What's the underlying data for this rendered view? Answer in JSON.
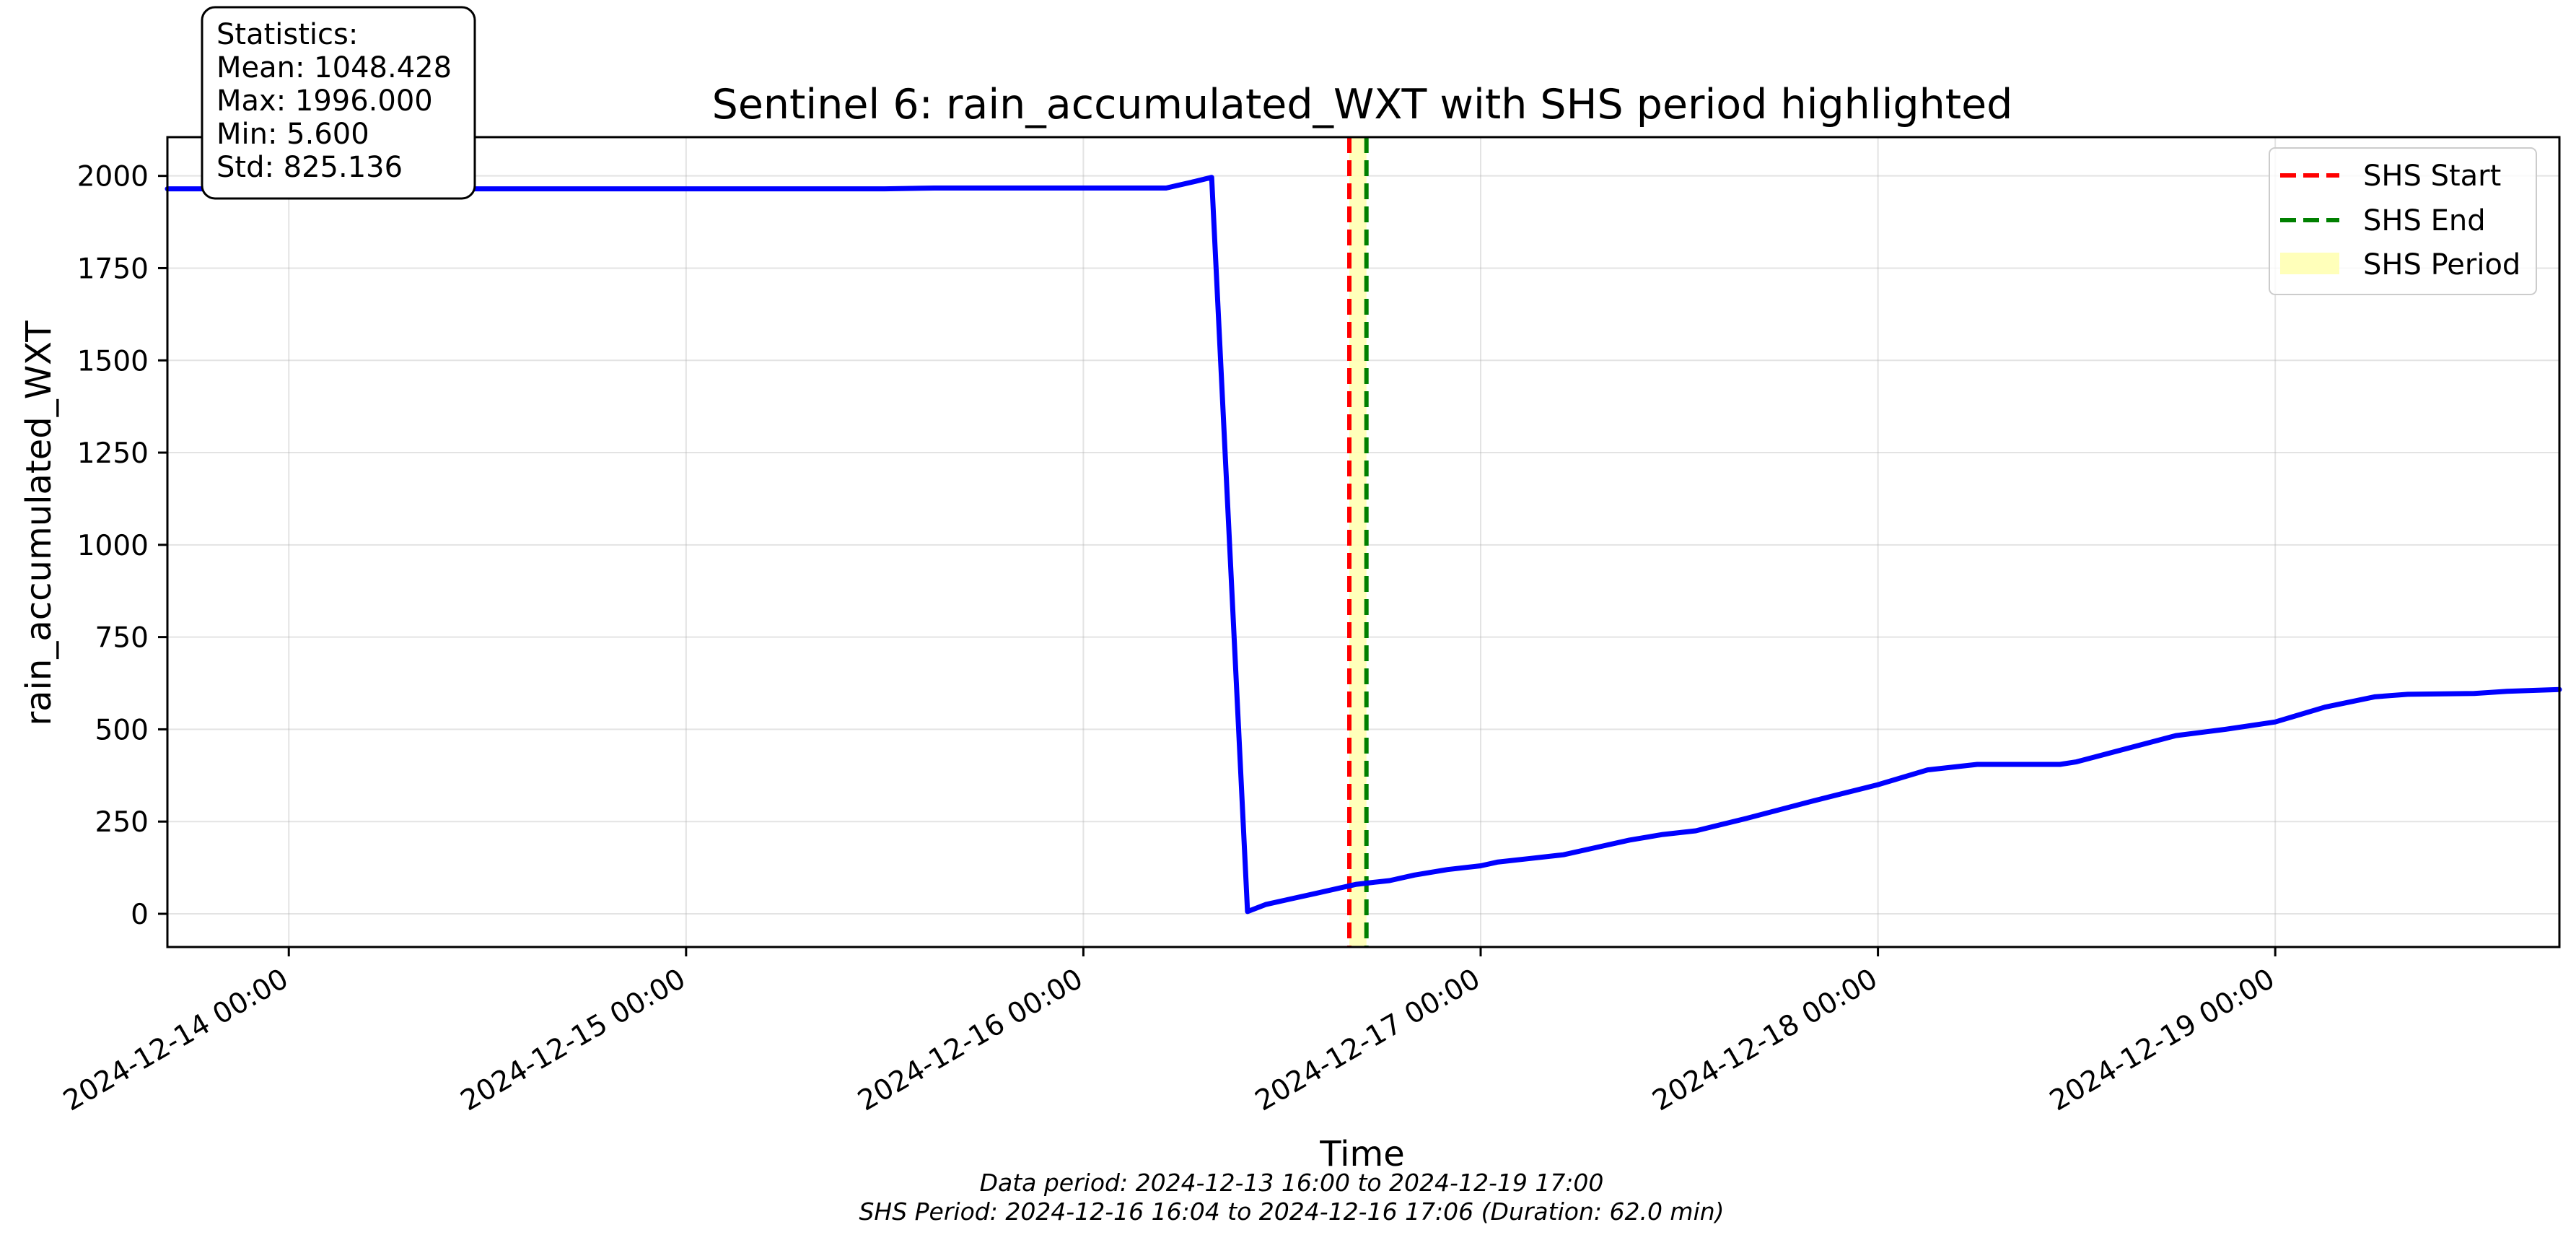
{
  "chart_data": {
    "type": "line",
    "title": "Sentinel 6: rain_accumulated_WXT with SHS period highlighted",
    "xlabel": "Time",
    "ylabel": "rain_accumulated_WXT",
    "x_range": [
      "2024-12-13 16:40",
      "2024-12-19 17:10"
    ],
    "ylim": [
      -90,
      2105
    ],
    "grid": true,
    "legend_placement": "top-right",
    "x_ticks": [
      {
        "t": "2024-12-14 00:00",
        "label": "2024-12-14 00:00"
      },
      {
        "t": "2024-12-15 00:00",
        "label": "2024-12-15 00:00"
      },
      {
        "t": "2024-12-16 00:00",
        "label": "2024-12-16 00:00"
      },
      {
        "t": "2024-12-17 00:00",
        "label": "2024-12-17 00:00"
      },
      {
        "t": "2024-12-18 00:00",
        "label": "2024-12-18 00:00"
      },
      {
        "t": "2024-12-19 00:00",
        "label": "2024-12-19 00:00"
      }
    ],
    "y_ticks": [
      0,
      250,
      500,
      750,
      1000,
      1250,
      1500,
      1750,
      2000
    ],
    "series": [
      {
        "color": "#0000ff",
        "points": [
          [
            "2024-12-13 16:40",
            1965
          ],
          [
            "2024-12-15 12:00",
            1965
          ],
          [
            "2024-12-15 15:00",
            1967
          ],
          [
            "2024-12-16 05:00",
            1967
          ],
          [
            "2024-12-16 06:45",
            1985
          ],
          [
            "2024-12-16 07:45",
            1996
          ],
          [
            "2024-12-16 09:55",
            6
          ],
          [
            "2024-12-16 11:00",
            25
          ],
          [
            "2024-12-16 12:30",
            40
          ],
          [
            "2024-12-16 14:00",
            55
          ],
          [
            "2024-12-16 15:30",
            70
          ],
          [
            "2024-12-16 16:30",
            80
          ],
          [
            "2024-12-16 17:30",
            85
          ],
          [
            "2024-12-16 18:30",
            90
          ],
          [
            "2024-12-16 20:00",
            105
          ],
          [
            "2024-12-16 22:00",
            120
          ],
          [
            "2024-12-17 00:00",
            130
          ],
          [
            "2024-12-17 01:00",
            140
          ],
          [
            "2024-12-17 03:00",
            150
          ],
          [
            "2024-12-17 05:00",
            160
          ],
          [
            "2024-12-17 07:00",
            180
          ],
          [
            "2024-12-17 09:00",
            200
          ],
          [
            "2024-12-17 11:00",
            215
          ],
          [
            "2024-12-17 13:00",
            225
          ],
          [
            "2024-12-17 16:00",
            258
          ],
          [
            "2024-12-17 20:00",
            305
          ],
          [
            "2024-12-18 00:00",
            350
          ],
          [
            "2024-12-18 03:00",
            390
          ],
          [
            "2024-12-18 06:00",
            405
          ],
          [
            "2024-12-18 11:00",
            405
          ],
          [
            "2024-12-18 12:00",
            412
          ],
          [
            "2024-12-18 18:00",
            483
          ],
          [
            "2024-12-18 21:00",
            500
          ],
          [
            "2024-12-19 00:00",
            520
          ],
          [
            "2024-12-19 03:00",
            560
          ],
          [
            "2024-12-19 06:00",
            588
          ],
          [
            "2024-12-19 08:00",
            595
          ],
          [
            "2024-12-19 12:00",
            597
          ],
          [
            "2024-12-19 14:00",
            603
          ],
          [
            "2024-12-19 17:10",
            608
          ]
        ]
      }
    ],
    "shs": {
      "start": "2024-12-16 16:04",
      "end": "2024-12-16 17:06",
      "start_color": "#ff0000",
      "end_color": "#008000",
      "fill_color": "#ffffb3"
    },
    "legend": [
      {
        "label": "SHS Start",
        "kind": "dashed",
        "color": "#ff0000"
      },
      {
        "label": "SHS End",
        "kind": "dashed",
        "color": "#008000"
      },
      {
        "label": "SHS Period",
        "kind": "patch",
        "color": "#ffffb3"
      }
    ],
    "statistics": {
      "heading": "Statistics:",
      "mean": "Mean: 1048.428",
      "max": "Max: 1996.000",
      "min": "Min: 5.600",
      "std": "Std: 825.136"
    },
    "footnotes": {
      "data_period": "Data period: 2024-12-13 16:00 to 2024-12-19 17:00",
      "shs_period": "SHS Period: 2024-12-16 16:04 to 2024-12-16 17:06 (Duration: 62.0 min)"
    }
  }
}
